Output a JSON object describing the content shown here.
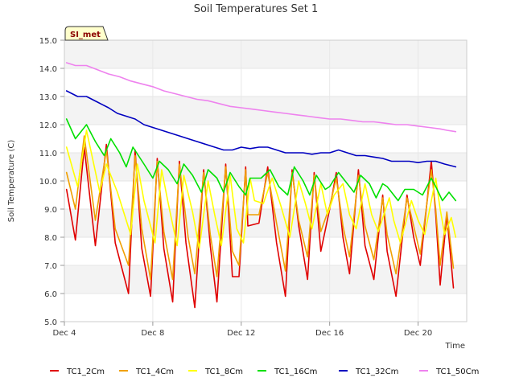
{
  "chart_data": {
    "type": "line",
    "title": "Soil Temperatures Set 1",
    "xlabel": "Time",
    "ylabel": "Soil Temperature (C)",
    "badge": "SI_met",
    "x_tick_labels": [
      "Dec 4",
      "Dec 8",
      "Dec 12",
      "Dec 16",
      "Dec 20"
    ],
    "x_tick_days": [
      4,
      8,
      12,
      16,
      20
    ],
    "x_range_days": [
      4,
      22.2
    ],
    "ylim": [
      5.0,
      15.0
    ],
    "y_ticks": [
      5.0,
      6.0,
      7.0,
      8.0,
      9.0,
      10.0,
      11.0,
      12.0,
      13.0,
      14.0,
      15.0
    ],
    "y_tick_labels": [
      "5.0",
      "6.0",
      "7.0",
      "8.0",
      "9.0",
      "10.0",
      "11.0",
      "12.0",
      "13.0",
      "14.0",
      "15.0"
    ],
    "grid": true,
    "legend_position": "bottom",
    "series": [
      {
        "name": "TC1_2Cm",
        "color": "#e00000",
        "points": [
          [
            4.1,
            9.7
          ],
          [
            4.5,
            7.9
          ],
          [
            4.9,
            11.2
          ],
          [
            5.4,
            7.7
          ],
          [
            5.9,
            11.3
          ],
          [
            6.3,
            7.8
          ],
          [
            6.9,
            6.0
          ],
          [
            7.2,
            11.1
          ],
          [
            7.5,
            7.6
          ],
          [
            7.9,
            5.9
          ],
          [
            8.2,
            10.8
          ],
          [
            8.5,
            7.6
          ],
          [
            8.9,
            5.7
          ],
          [
            9.2,
            10.7
          ],
          [
            9.5,
            7.8
          ],
          [
            9.9,
            5.5
          ],
          [
            10.3,
            10.4
          ],
          [
            10.6,
            7.7
          ],
          [
            10.9,
            5.7
          ],
          [
            11.3,
            10.6
          ],
          [
            11.6,
            6.6
          ],
          [
            11.9,
            6.6
          ],
          [
            12.2,
            10.5
          ],
          [
            12.3,
            8.4
          ],
          [
            12.8,
            8.5
          ],
          [
            13.2,
            10.5
          ],
          [
            13.6,
            7.8
          ],
          [
            14.0,
            5.9
          ],
          [
            14.3,
            10.4
          ],
          [
            14.6,
            8.4
          ],
          [
            15.0,
            6.5
          ],
          [
            15.3,
            10.3
          ],
          [
            15.6,
            7.5
          ],
          [
            16.0,
            9.0
          ],
          [
            16.3,
            10.3
          ],
          [
            16.6,
            8.0
          ],
          [
            16.9,
            6.7
          ],
          [
            17.3,
            10.4
          ],
          [
            17.6,
            7.7
          ],
          [
            18.0,
            6.5
          ],
          [
            18.4,
            9.5
          ],
          [
            18.6,
            7.5
          ],
          [
            19.0,
            5.9
          ],
          [
            19.5,
            9.5
          ],
          [
            19.8,
            8.0
          ],
          [
            20.1,
            7.0
          ],
          [
            20.6,
            10.7
          ],
          [
            20.8,
            8.8
          ],
          [
            21.0,
            6.3
          ],
          [
            21.3,
            8.8
          ],
          [
            21.6,
            6.2
          ]
        ]
      },
      {
        "name": "TC1_4Cm",
        "color": "#f0a000",
        "points": [
          [
            4.1,
            10.3
          ],
          [
            4.5,
            9.0
          ],
          [
            4.9,
            11.6
          ],
          [
            5.4,
            8.6
          ],
          [
            5.9,
            11.1
          ],
          [
            6.3,
            8.3
          ],
          [
            6.9,
            7.0
          ],
          [
            7.2,
            10.9
          ],
          [
            7.5,
            8.3
          ],
          [
            7.9,
            6.5
          ],
          [
            8.2,
            10.7
          ],
          [
            8.5,
            8.2
          ],
          [
            8.9,
            6.5
          ],
          [
            9.2,
            10.6
          ],
          [
            9.6,
            8.0
          ],
          [
            9.9,
            6.7
          ],
          [
            10.3,
            10.3
          ],
          [
            10.6,
            8.1
          ],
          [
            10.9,
            6.6
          ],
          [
            11.3,
            10.5
          ],
          [
            11.6,
            7.5
          ],
          [
            11.9,
            7.0
          ],
          [
            12.2,
            10.4
          ],
          [
            12.3,
            8.8
          ],
          [
            12.8,
            8.8
          ],
          [
            13.2,
            10.3
          ],
          [
            13.6,
            8.5
          ],
          [
            14.0,
            6.8
          ],
          [
            14.3,
            10.3
          ],
          [
            14.6,
            8.6
          ],
          [
            15.0,
            7.3
          ],
          [
            15.3,
            10.2
          ],
          [
            15.6,
            8.2
          ],
          [
            16.0,
            9.1
          ],
          [
            16.3,
            10.1
          ],
          [
            16.6,
            8.4
          ],
          [
            16.9,
            7.3
          ],
          [
            17.3,
            10.2
          ],
          [
            17.6,
            8.4
          ],
          [
            18.0,
            7.2
          ],
          [
            18.4,
            9.4
          ],
          [
            18.6,
            8.1
          ],
          [
            19.0,
            6.7
          ],
          [
            19.5,
            9.4
          ],
          [
            19.8,
            8.4
          ],
          [
            20.1,
            7.4
          ],
          [
            20.6,
            10.4
          ],
          [
            20.8,
            9.0
          ],
          [
            21.0,
            7.0
          ],
          [
            21.3,
            8.9
          ],
          [
            21.6,
            6.9
          ]
        ]
      },
      {
        "name": "TC1_8Cm",
        "color": "#ffff00",
        "points": [
          [
            4.1,
            11.2
          ],
          [
            4.6,
            9.8
          ],
          [
            5.0,
            11.8
          ],
          [
            5.6,
            9.6
          ],
          [
            5.9,
            10.6
          ],
          [
            6.4,
            9.6
          ],
          [
            7.0,
            8.1
          ],
          [
            7.3,
            10.6
          ],
          [
            7.6,
            9.3
          ],
          [
            8.1,
            7.8
          ],
          [
            8.4,
            10.4
          ],
          [
            8.7,
            9.2
          ],
          [
            9.1,
            7.7
          ],
          [
            9.4,
            10.2
          ],
          [
            9.8,
            8.9
          ],
          [
            10.1,
            7.6
          ],
          [
            10.5,
            10.0
          ],
          [
            10.8,
            8.8
          ],
          [
            11.1,
            7.7
          ],
          [
            11.5,
            10.2
          ],
          [
            11.8,
            8.3
          ],
          [
            12.1,
            7.8
          ],
          [
            12.4,
            10.1
          ],
          [
            12.6,
            9.3
          ],
          [
            13.0,
            9.2
          ],
          [
            13.4,
            10.1
          ],
          [
            13.8,
            9.1
          ],
          [
            14.2,
            8.0
          ],
          [
            14.6,
            10.0
          ],
          [
            14.9,
            9.2
          ],
          [
            15.2,
            8.3
          ],
          [
            15.6,
            9.9
          ],
          [
            15.9,
            8.8
          ],
          [
            16.2,
            9.5
          ],
          [
            16.6,
            9.9
          ],
          [
            16.9,
            8.8
          ],
          [
            17.2,
            8.3
          ],
          [
            17.6,
            9.9
          ],
          [
            17.9,
            8.8
          ],
          [
            18.2,
            8.2
          ],
          [
            18.7,
            9.4
          ],
          [
            18.9,
            8.6
          ],
          [
            19.2,
            7.8
          ],
          [
            19.7,
            9.3
          ],
          [
            20.0,
            8.6
          ],
          [
            20.3,
            8.1
          ],
          [
            20.8,
            10.1
          ],
          [
            21.0,
            9.0
          ],
          [
            21.2,
            8.1
          ],
          [
            21.5,
            8.7
          ],
          [
            21.7,
            8.0
          ]
        ]
      },
      {
        "name": "TC1_16Cm",
        "color": "#00e000",
        "points": [
          [
            4.1,
            12.2
          ],
          [
            4.5,
            11.5
          ],
          [
            5.0,
            12.0
          ],
          [
            5.4,
            11.4
          ],
          [
            5.8,
            10.9
          ],
          [
            6.1,
            11.5
          ],
          [
            6.5,
            11.0
          ],
          [
            6.8,
            10.5
          ],
          [
            7.1,
            11.2
          ],
          [
            7.6,
            10.6
          ],
          [
            8.0,
            10.1
          ],
          [
            8.3,
            10.7
          ],
          [
            8.7,
            10.4
          ],
          [
            9.1,
            9.9
          ],
          [
            9.4,
            10.6
          ],
          [
            9.8,
            10.2
          ],
          [
            10.2,
            9.6
          ],
          [
            10.5,
            10.4
          ],
          [
            10.9,
            10.1
          ],
          [
            11.2,
            9.6
          ],
          [
            11.5,
            10.3
          ],
          [
            11.9,
            9.8
          ],
          [
            12.2,
            9.5
          ],
          [
            12.4,
            10.1
          ],
          [
            12.9,
            10.1
          ],
          [
            13.3,
            10.4
          ],
          [
            13.7,
            9.8
          ],
          [
            14.1,
            9.5
          ],
          [
            14.4,
            10.5
          ],
          [
            14.8,
            10.0
          ],
          [
            15.1,
            9.5
          ],
          [
            15.4,
            10.2
          ],
          [
            15.8,
            9.7
          ],
          [
            16.0,
            9.8
          ],
          [
            16.4,
            10.3
          ],
          [
            16.7,
            10.0
          ],
          [
            17.1,
            9.6
          ],
          [
            17.4,
            10.2
          ],
          [
            17.8,
            9.9
          ],
          [
            18.1,
            9.4
          ],
          [
            18.4,
            9.9
          ],
          [
            18.6,
            9.8
          ],
          [
            19.1,
            9.3
          ],
          [
            19.4,
            9.7
          ],
          [
            19.8,
            9.7
          ],
          [
            20.2,
            9.5
          ],
          [
            20.6,
            10.1
          ],
          [
            20.8,
            9.8
          ],
          [
            21.1,
            9.3
          ],
          [
            21.4,
            9.6
          ],
          [
            21.7,
            9.3
          ]
        ]
      },
      {
        "name": "TC1_32Cm",
        "color": "#0000c0",
        "points": [
          [
            4.1,
            13.2
          ],
          [
            4.6,
            13.0
          ],
          [
            5.0,
            13.0
          ],
          [
            5.5,
            12.8
          ],
          [
            6.0,
            12.6
          ],
          [
            6.4,
            12.4
          ],
          [
            6.8,
            12.3
          ],
          [
            7.2,
            12.2
          ],
          [
            7.6,
            12.0
          ],
          [
            8.0,
            11.9
          ],
          [
            8.4,
            11.8
          ],
          [
            8.8,
            11.7
          ],
          [
            9.2,
            11.6
          ],
          [
            9.6,
            11.5
          ],
          [
            10.0,
            11.4
          ],
          [
            10.4,
            11.3
          ],
          [
            10.8,
            11.2
          ],
          [
            11.2,
            11.1
          ],
          [
            11.6,
            11.1
          ],
          [
            12.0,
            11.2
          ],
          [
            12.4,
            11.15
          ],
          [
            12.8,
            11.2
          ],
          [
            13.2,
            11.2
          ],
          [
            13.6,
            11.1
          ],
          [
            14.0,
            11.0
          ],
          [
            14.4,
            11.0
          ],
          [
            14.8,
            11.0
          ],
          [
            15.2,
            10.95
          ],
          [
            15.6,
            11.0
          ],
          [
            16.0,
            11.0
          ],
          [
            16.4,
            11.1
          ],
          [
            16.8,
            11.0
          ],
          [
            17.2,
            10.9
          ],
          [
            17.6,
            10.9
          ],
          [
            18.0,
            10.85
          ],
          [
            18.4,
            10.8
          ],
          [
            18.8,
            10.7
          ],
          [
            19.2,
            10.7
          ],
          [
            19.6,
            10.7
          ],
          [
            20.0,
            10.65
          ],
          [
            20.4,
            10.7
          ],
          [
            20.8,
            10.7
          ],
          [
            21.2,
            10.6
          ],
          [
            21.7,
            10.5
          ]
        ]
      },
      {
        "name": "TC1_50Cm",
        "color": "#ee82ee",
        "points": [
          [
            4.1,
            14.2
          ],
          [
            4.5,
            14.1
          ],
          [
            5.0,
            14.1
          ],
          [
            5.5,
            13.95
          ],
          [
            6.0,
            13.8
          ],
          [
            6.5,
            13.7
          ],
          [
            7.0,
            13.55
          ],
          [
            7.5,
            13.45
          ],
          [
            8.0,
            13.35
          ],
          [
            8.5,
            13.2
          ],
          [
            9.0,
            13.1
          ],
          [
            9.5,
            13.0
          ],
          [
            10.0,
            12.9
          ],
          [
            10.5,
            12.85
          ],
          [
            11.0,
            12.75
          ],
          [
            11.5,
            12.65
          ],
          [
            12.0,
            12.6
          ],
          [
            12.5,
            12.55
          ],
          [
            13.0,
            12.5
          ],
          [
            13.5,
            12.45
          ],
          [
            14.0,
            12.4
          ],
          [
            14.5,
            12.35
          ],
          [
            15.0,
            12.3
          ],
          [
            15.5,
            12.25
          ],
          [
            16.0,
            12.2
          ],
          [
            16.5,
            12.2
          ],
          [
            17.0,
            12.15
          ],
          [
            17.5,
            12.1
          ],
          [
            18.0,
            12.1
          ],
          [
            18.5,
            12.05
          ],
          [
            19.0,
            12.0
          ],
          [
            19.5,
            12.0
          ],
          [
            20.0,
            11.95
          ],
          [
            20.5,
            11.9
          ],
          [
            21.0,
            11.85
          ],
          [
            21.3,
            11.8
          ],
          [
            21.7,
            11.75
          ]
        ]
      }
    ]
  }
}
